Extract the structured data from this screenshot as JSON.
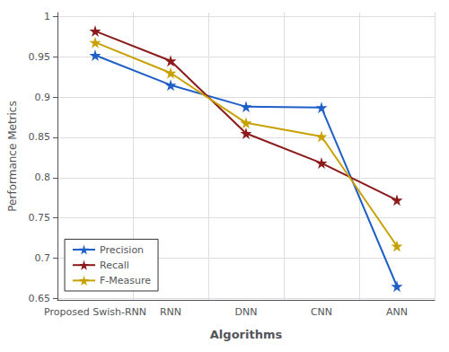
{
  "chart_data": {
    "type": "line",
    "categories": [
      "Proposed Swish-RNN",
      "RNN",
      "DNN",
      "CNN",
      "ANN"
    ],
    "series": [
      {
        "name": "Precision",
        "color": "#1f5fc8",
        "values": [
          0.952,
          0.915,
          0.888,
          0.887,
          0.665
        ]
      },
      {
        "name": "Recall",
        "color": "#8B1a1a",
        "values": [
          0.982,
          0.945,
          0.855,
          0.818,
          0.772
        ]
      },
      {
        "name": "F-Measure",
        "color": "#c8a000",
        "values": [
          0.968,
          0.93,
          0.868,
          0.851,
          0.715
        ]
      }
    ],
    "xlabel": "Algorithms",
    "ylabel": "Performance Metrics",
    "ylim": [
      0.648,
      1.005
    ],
    "yticks": [
      0.65,
      0.7,
      0.75,
      0.8,
      0.85,
      0.9,
      0.95,
      1
    ],
    "grid": true,
    "legend": "lower left",
    "marker": "star"
  }
}
